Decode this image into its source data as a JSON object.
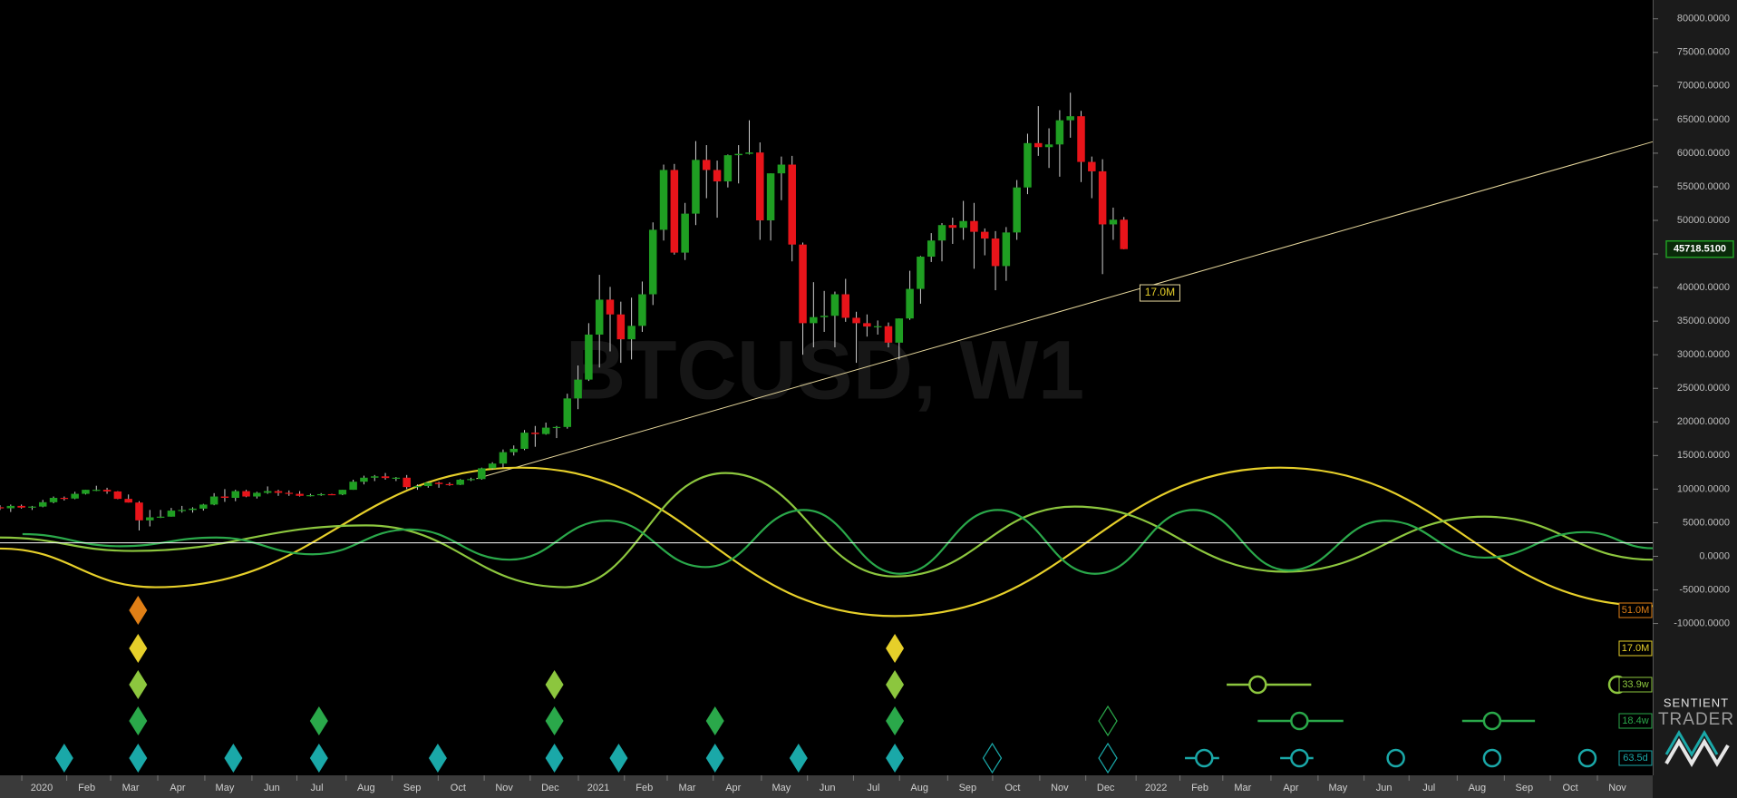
{
  "chart_data": {
    "type": "candlestick",
    "watermark": "BTCUSD, W1",
    "xlim": [
      0,
      154.4
    ],
    "ylim": [
      -32600,
      82800
    ],
    "xticks": [
      {
        "value": 3.9,
        "label": "2020"
      },
      {
        "value": 8.1,
        "label": "Feb"
      },
      {
        "value": 12.2,
        "label": "Mar"
      },
      {
        "value": 16.6,
        "label": "Apr"
      },
      {
        "value": 21.0,
        "label": "May"
      },
      {
        "value": 25.4,
        "label": "Jun"
      },
      {
        "value": 29.6,
        "label": "Jul"
      },
      {
        "value": 34.2,
        "label": "Aug"
      },
      {
        "value": 38.5,
        "label": "Sep"
      },
      {
        "value": 42.8,
        "label": "Oct"
      },
      {
        "value": 47.1,
        "label": "Nov"
      },
      {
        "value": 51.4,
        "label": "Dec"
      },
      {
        "value": 55.9,
        "label": "2021"
      },
      {
        "value": 60.2,
        "label": "Feb"
      },
      {
        "value": 64.2,
        "label": "Mar"
      },
      {
        "value": 68.5,
        "label": "Apr"
      },
      {
        "value": 73.0,
        "label": "May"
      },
      {
        "value": 77.3,
        "label": "Jun"
      },
      {
        "value": 81.6,
        "label": "Jul"
      },
      {
        "value": 85.9,
        "label": "Aug"
      },
      {
        "value": 90.4,
        "label": "Sep"
      },
      {
        "value": 94.6,
        "label": "Oct"
      },
      {
        "value": 99.0,
        "label": "Nov"
      },
      {
        "value": 103.3,
        "label": "Dec"
      },
      {
        "value": 108.0,
        "label": "2022"
      },
      {
        "value": 112.1,
        "label": "Feb"
      },
      {
        "value": 116.1,
        "label": "Mar"
      },
      {
        "value": 120.6,
        "label": "Apr"
      },
      {
        "value": 125.0,
        "label": "May"
      },
      {
        "value": 129.3,
        "label": "Jun"
      },
      {
        "value": 133.5,
        "label": "Jul"
      },
      {
        "value": 138.0,
        "label": "Aug"
      },
      {
        "value": 142.4,
        "label": "Sep"
      },
      {
        "value": 146.7,
        "label": "Oct"
      },
      {
        "value": 151.1,
        "label": "Nov"
      }
    ],
    "yticks": [
      {
        "value": 80000,
        "label": "80000.0000"
      },
      {
        "value": 75000,
        "label": "75000.0000"
      },
      {
        "value": 70000,
        "label": "70000.0000"
      },
      {
        "value": 65000,
        "label": "65000.0000"
      },
      {
        "value": 60000,
        "label": "60000.0000"
      },
      {
        "value": 55000,
        "label": "55000.0000"
      },
      {
        "value": 50000,
        "label": "50000.0000"
      },
      {
        "value": 45000,
        "label": "45000.0000"
      },
      {
        "value": 40000,
        "label": "40000.0000"
      },
      {
        "value": 35000,
        "label": "35000.0000"
      },
      {
        "value": 30000,
        "label": "30000.0000"
      },
      {
        "value": 25000,
        "label": "25000.0000"
      },
      {
        "value": 20000,
        "label": "20000.0000"
      },
      {
        "value": 15000,
        "label": "15000.0000"
      },
      {
        "value": 10000,
        "label": "10000.0000"
      },
      {
        "value": 5000,
        "label": "5000.0000"
      },
      {
        "value": 0,
        "label": "0.0000"
      },
      {
        "value": -5000,
        "label": "-5000.0000"
      },
      {
        "value": -10000,
        "label": "-10000.0000"
      }
    ],
    "up_color": "#1f9e22",
    "down_color": "#e8141a",
    "candles": {
      "x": [
        0,
        1,
        2,
        3,
        4,
        5,
        6,
        7,
        8,
        9,
        10,
        11,
        12,
        13,
        14,
        15,
        16,
        17,
        18,
        19,
        20,
        21,
        22,
        23,
        24,
        25,
        26,
        27,
        28,
        29,
        30,
        31,
        32,
        33,
        34,
        35,
        36,
        37,
        38,
        39,
        40,
        41,
        42,
        43,
        44,
        45,
        46,
        47,
        48,
        49,
        50,
        51,
        52,
        53,
        54,
        55,
        56,
        57,
        58,
        59,
        60,
        61,
        62,
        63,
        64,
        65,
        66,
        67,
        68,
        69,
        70,
        71,
        72,
        73,
        74,
        75,
        76,
        77,
        78,
        79,
        80,
        81,
        82,
        83,
        84,
        85,
        86,
        87,
        88,
        89,
        90,
        91,
        92,
        93,
        94,
        95,
        96,
        97,
        98,
        99,
        100,
        101,
        102,
        103,
        104,
        105
      ],
      "open": [
        7300,
        7150,
        7500,
        7250,
        7400,
        8050,
        8700,
        8600,
        9300,
        9900,
        9900,
        9650,
        8550,
        8000,
        5350,
        5800,
        5900,
        6800,
        6900,
        7100,
        7700,
        8900,
        8700,
        9700,
        8900,
        9450,
        9700,
        9450,
        9300,
        9000,
        9100,
        9250,
        9200,
        9900,
        11100,
        11700,
        11900,
        11650,
        11700,
        10300,
        10450,
        10950,
        10750,
        10650,
        11400,
        11500,
        13100,
        13800,
        15500,
        16000,
        18400,
        18200,
        19150,
        19250,
        23500,
        26300,
        33000,
        38200,
        36000,
        32300,
        34300,
        39000,
        48600,
        57500,
        45200,
        51000,
        59000,
        57500,
        55800,
        59700,
        59900,
        60100,
        50000,
        57000,
        58300,
        46400,
        34700,
        35600,
        35800,
        39000,
        35500,
        34700,
        34200,
        34250,
        31800,
        35400,
        39800,
        44600,
        47000,
        49300,
        48900,
        49900,
        48300,
        47300,
        43200,
        48200,
        54900,
        61500,
        60900,
        61300,
        64900,
        65500,
        58700,
        57300,
        49400,
        50100
      ],
      "high": [
        7600,
        7700,
        7700,
        7500,
        8400,
        8900,
        8900,
        9600,
        9900,
        10500,
        10200,
        9700,
        9200,
        8200,
        6900,
        6900,
        7200,
        7500,
        7300,
        7800,
        9400,
        10000,
        9900,
        9900,
        9600,
        10400,
        9900,
        9800,
        9700,
        9300,
        9400,
        9300,
        9900,
        11400,
        12000,
        12100,
        12400,
        11800,
        12100,
        10700,
        11100,
        11100,
        11000,
        11500,
        11700,
        13200,
        14000,
        15900,
        16500,
        18800,
        19400,
        19900,
        19400,
        24200,
        28400,
        34700,
        41900,
        40100,
        37900,
        38500,
        40900,
        49700,
        58300,
        58400,
        52600,
        61800,
        61200,
        58900,
        59800,
        61200,
        64900,
        61600,
        57000,
        59500,
        59600,
        46700,
        40800,
        39500,
        39400,
        41300,
        36400,
        36000,
        35100,
        34800,
        35400,
        42500,
        44700,
        48100,
        49600,
        50400,
        52900,
        52600,
        48800,
        48400,
        49000,
        56000,
        62900,
        67000,
        63700,
        66400,
        69000,
        66300,
        59500,
        59100,
        51900,
        50500
      ],
      "low": [
        6900,
        6600,
        7100,
        6900,
        7300,
        7900,
        8300,
        8500,
        9200,
        9700,
        9300,
        8500,
        8000,
        3850,
        4450,
        5700,
        5900,
        6500,
        6500,
        6800,
        7600,
        8100,
        8200,
        8800,
        8600,
        9300,
        9000,
        9000,
        8900,
        8900,
        9000,
        9100,
        9100,
        9900,
        10700,
        11200,
        11400,
        11200,
        10000,
        9900,
        10200,
        10200,
        10500,
        10600,
        11200,
        11400,
        12900,
        13200,
        15000,
        15800,
        16300,
        18100,
        17600,
        19000,
        21900,
        26100,
        28100,
        30500,
        28800,
        29300,
        33400,
        37400,
        47000,
        44900,
        44100,
        49300,
        53300,
        50400,
        54900,
        55500,
        59800,
        47100,
        47000,
        53000,
        43900,
        30000,
        31100,
        33400,
        31100,
        34900,
        28800,
        32700,
        33000,
        31100,
        29300,
        35200,
        37600,
        43800,
        43900,
        46500,
        47100,
        42800,
        44800,
        39600,
        41000,
        47100,
        53900,
        59600,
        57800,
        56500,
        62300,
        55700,
        53300,
        42000,
        47100,
        45700
      ],
      "close": [
        7150,
        7500,
        7250,
        7400,
        8050,
        8700,
        8600,
        9300,
        9900,
        9900,
        9650,
        8550,
        8000,
        5350,
        5800,
        5900,
        6800,
        6900,
        7100,
        7700,
        8900,
        8700,
        9700,
        8900,
        9450,
        9700,
        9450,
        9300,
        9000,
        9100,
        9250,
        9200,
        9900,
        11100,
        11700,
        11900,
        11650,
        11700,
        10300,
        10450,
        10950,
        10750,
        10650,
        11400,
        11500,
        13100,
        13800,
        15500,
        16000,
        18400,
        18200,
        19150,
        19250,
        23500,
        26300,
        33000,
        38200,
        36000,
        32300,
        34300,
        39000,
        48600,
        57500,
        45200,
        51000,
        59000,
        57500,
        55800,
        59700,
        59900,
        60100,
        50000,
        57000,
        58300,
        46400,
        34700,
        35600,
        35800,
        39000,
        35500,
        34700,
        34200,
        34250,
        31800,
        35400,
        39800,
        44600,
        47000,
        49300,
        48900,
        49900,
        48300,
        47300,
        43200,
        48200,
        54900,
        61500,
        60900,
        61300,
        64900,
        65500,
        58700,
        57300,
        49400,
        50100,
        45718.51
      ]
    },
    "last_price": {
      "value": 45718.51,
      "label": "45718.5100",
      "color": "#1f9e22"
    },
    "trendline": {
      "x": [
        44.5,
        154.4
      ],
      "values": [
        11550,
        61700
      ],
      "color": "#e6d79c",
      "label": "17.0M",
      "label_x": 106.5,
      "label_value": 39200
    },
    "reference_line": {
      "value": 2000,
      "color": "#ffffff"
    },
    "cycles": [
      {
        "name": "51.0M",
        "color": "#e07f16",
        "troughs": [
          12.9
        ],
        "hollow": [],
        "projected": []
      },
      {
        "name": "17.0M",
        "color": "#e6cf2a",
        "troughs": [
          12.9,
          83.6
        ],
        "hollow": [],
        "projected": [],
        "wave": {
          "x": [
            0,
            14.5,
            48.7,
            83.6,
            119.6,
            154.4
          ],
          "values": [
            1150,
            -4600,
            13200,
            -8900,
            13200,
            -7400
          ]
        }
      },
      {
        "name": "33.9w",
        "color": "#8cc63e",
        "troughs": [
          12.9,
          51.8,
          83.6
        ],
        "hollow": [],
        "projected": [
          {
            "x": 117.5,
            "range": [
              114.6,
              122.5
            ]
          },
          {
            "x": 151.1
          }
        ],
        "wave": {
          "x": [
            0,
            12.4,
            34.2,
            52.8,
            67.8,
            83.6,
            100.4,
            120.1,
            138.7,
            154.4
          ],
          "values": [
            2800,
            800,
            4600,
            -4600,
            12400,
            -3000,
            7400,
            -2300,
            5900,
            -500
          ]
        }
      },
      {
        "name": "18.4w",
        "color": "#2aa84a",
        "troughs": [
          12.9,
          29.8,
          51.8,
          66.8,
          83.6
        ],
        "hollow": [
          103.5
        ],
        "projected": [
          {
            "x": 121.4,
            "range": [
              117.5,
              125.5
            ]
          },
          {
            "x": 139.4,
            "range": [
              136.6,
              143.4
            ]
          }
        ],
        "wave": {
          "x": [
            2.1,
            11.2,
            20.2,
            29.2,
            38.3,
            47.6,
            56.7,
            65.9,
            75.1,
            84.1,
            93.2,
            102.3,
            111.5,
            120.4,
            129.4,
            138.7,
            148.0,
            154.4
          ],
          "values": [
            3300,
            1500,
            2800,
            300,
            4000,
            -500,
            5300,
            -1600,
            6900,
            -2600,
            6900,
            -2600,
            6900,
            -2100,
            5300,
            -200,
            3600,
            1200
          ]
        }
      },
      {
        "name": "63.5d",
        "color": "#1aa8a8",
        "troughs": [
          6.0,
          12.9,
          21.8,
          29.8,
          40.9,
          51.8,
          57.8,
          66.8,
          74.6,
          83.6
        ],
        "hollow": [
          92.7,
          103.5
        ],
        "projected": [
          {
            "x": 112.5,
            "range": [
              110.7,
              113.9
            ]
          },
          {
            "x": 121.4,
            "range": [
              119.6,
              122.7
            ]
          },
          {
            "x": 130.4
          },
          {
            "x": 139.4
          },
          {
            "x": 148.3
          }
        ]
      }
    ]
  },
  "logo": {
    "line1": "SENTIENT",
    "line2": "TRADER"
  }
}
